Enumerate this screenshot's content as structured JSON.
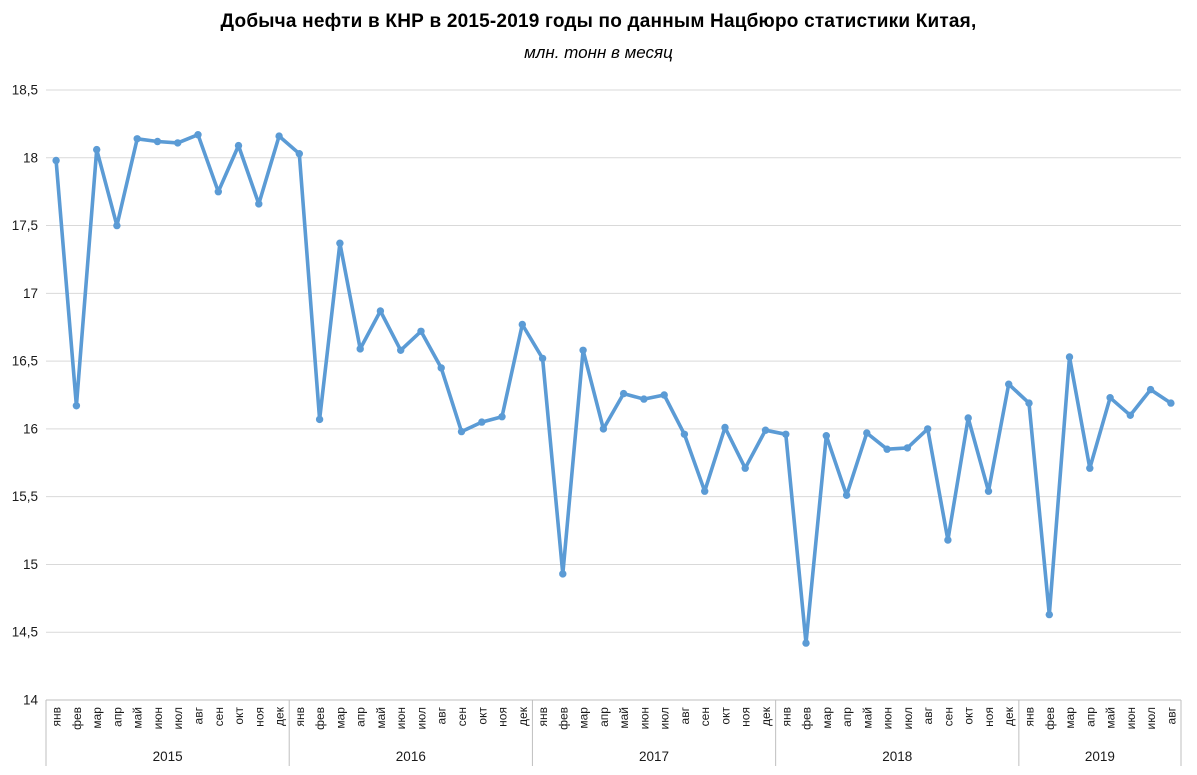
{
  "chart_data": {
    "type": "line",
    "title": "Добыча нефти в КНР в 2015-2019 годы по данным Нацбюро статистики Китая,",
    "subtitle": "млн. тонн в месяц",
    "ylim": [
      14,
      18.5
    ],
    "ytick_step": 0.5,
    "ytick_labels": [
      "18,5",
      "18",
      "17,5",
      "17",
      "16,5",
      "16",
      "15,5",
      "15",
      "14,5",
      "14"
    ],
    "grid": true,
    "legend": false,
    "categories": [
      "янв",
      "фев",
      "мар",
      "апр",
      "май",
      "июн",
      "июл",
      "авг",
      "сен",
      "окт",
      "ноя",
      "дек",
      "янв",
      "фев",
      "мар",
      "апр",
      "май",
      "июн",
      "июл",
      "авг",
      "сен",
      "окт",
      "ноя",
      "дек",
      "янв",
      "фев",
      "мар",
      "апр",
      "май",
      "июн",
      "июл",
      "авг",
      "сен",
      "окт",
      "ноя",
      "дек",
      "янв",
      "фев",
      "мар",
      "апр",
      "май",
      "июн",
      "июл",
      "авг",
      "сен",
      "окт",
      "ноя",
      "дек",
      "янв",
      "фев",
      "мар",
      "апр",
      "май",
      "июн",
      "июл",
      "авг"
    ],
    "year_groups": [
      {
        "label": "2015",
        "months": 12
      },
      {
        "label": "2016",
        "months": 12
      },
      {
        "label": "2017",
        "months": 12
      },
      {
        "label": "2018",
        "months": 12
      },
      {
        "label": "2019",
        "months": 8
      }
    ],
    "values": [
      17.98,
      16.17,
      18.06,
      17.5,
      18.14,
      18.12,
      18.11,
      18.17,
      17.75,
      18.09,
      17.66,
      18.16,
      18.03,
      16.07,
      17.37,
      16.59,
      16.87,
      16.58,
      16.72,
      16.45,
      15.98,
      16.05,
      16.09,
      16.77,
      16.52,
      14.93,
      16.58,
      16.0,
      16.26,
      16.22,
      16.25,
      15.96,
      15.54,
      16.01,
      15.71,
      15.99,
      15.96,
      14.42,
      15.95,
      15.51,
      15.97,
      15.85,
      15.86,
      16.0,
      15.18,
      16.08,
      15.54,
      16.33,
      16.19,
      14.63,
      16.53,
      15.71,
      16.23,
      16.1,
      16.29,
      16.19
    ],
    "colors": {
      "line": "#5B9BD5",
      "marker": "#5B9BD5",
      "gridline": "#D9D9D9",
      "axis": "#BFBFBF",
      "text": "#1a1a1a",
      "background": "#FFFFFF"
    }
  }
}
